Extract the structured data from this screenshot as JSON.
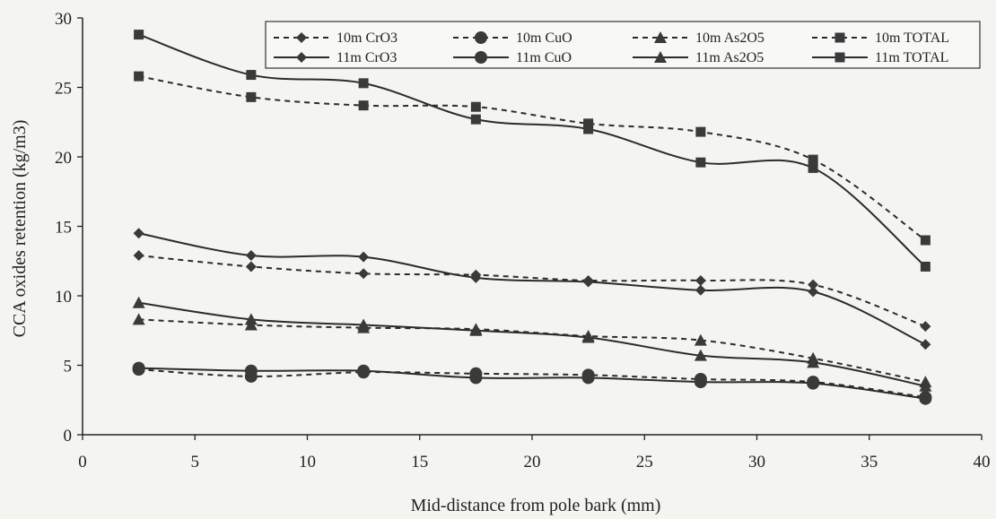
{
  "chart_data": {
    "type": "line",
    "title": "",
    "xlabel": "Mid-distance from pole bark (mm)",
    "ylabel": "CCA oxides retention (kg/m3)",
    "xlim": [
      0,
      40
    ],
    "ylim": [
      0,
      30
    ],
    "xticks": [
      0,
      5,
      10,
      15,
      20,
      25,
      30,
      35,
      40
    ],
    "yticks": [
      0,
      5,
      10,
      15,
      20,
      25,
      30
    ],
    "grid": false,
    "legend_position": "top-right",
    "x": [
      2.5,
      7.5,
      12.5,
      17.5,
      22.5,
      27.5,
      32.5,
      37.5
    ],
    "series": [
      {
        "name": "10m CrO3",
        "dashed": true,
        "marker": "diamond",
        "values": [
          12.9,
          12.1,
          11.6,
          11.5,
          11.1,
          11.1,
          10.8,
          7.8
        ]
      },
      {
        "name": "10m CuO",
        "dashed": true,
        "marker": "circle",
        "values": [
          4.7,
          4.2,
          4.5,
          4.4,
          4.3,
          4.0,
          3.8,
          2.7
        ]
      },
      {
        "name": "10m As2O5",
        "dashed": true,
        "marker": "triangle",
        "values": [
          8.3,
          7.9,
          7.7,
          7.6,
          7.1,
          6.8,
          5.5,
          3.8
        ]
      },
      {
        "name": "10m TOTAL",
        "dashed": true,
        "marker": "square",
        "values": [
          25.8,
          24.3,
          23.7,
          23.6,
          22.4,
          21.8,
          19.8,
          14.0
        ]
      },
      {
        "name": "11m CrO3",
        "dashed": false,
        "marker": "diamond",
        "values": [
          14.5,
          12.9,
          12.8,
          11.3,
          11.0,
          10.4,
          10.3,
          6.5
        ]
      },
      {
        "name": "11m CuO",
        "dashed": false,
        "marker": "circle",
        "values": [
          4.8,
          4.6,
          4.6,
          4.1,
          4.1,
          3.8,
          3.7,
          2.6
        ]
      },
      {
        "name": "11m As2O5",
        "dashed": false,
        "marker": "triangle",
        "values": [
          9.5,
          8.3,
          7.9,
          7.5,
          7.0,
          5.7,
          5.2,
          3.5
        ]
      },
      {
        "name": "11m TOTAL",
        "dashed": false,
        "marker": "square",
        "values": [
          28.8,
          25.9,
          25.3,
          22.7,
          22.0,
          19.6,
          19.2,
          12.1
        ]
      }
    ],
    "colors": {
      "line": "#2b2b2b",
      "marker": "#3a3a3a",
      "background": "#f4f4f1"
    }
  }
}
